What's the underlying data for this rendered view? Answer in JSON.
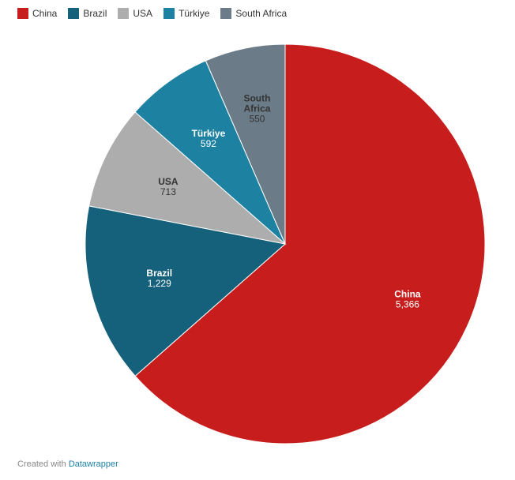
{
  "chart_data": {
    "type": "pie",
    "title": "",
    "categories": [
      "China",
      "Brazil",
      "USA",
      "Türkiye",
      "South Africa"
    ],
    "values": [
      5366,
      1229,
      713,
      592,
      550
    ],
    "value_labels": [
      "5,366",
      "1,229",
      "713",
      "592",
      "550"
    ],
    "colors": [
      "#c71e1d",
      "#15607a",
      "#adadad",
      "#1d81a2",
      "#6b7c88"
    ],
    "label_text_colors": [
      "#ffffff",
      "#ffffff",
      "#333333",
      "#ffffff",
      "#333333"
    ],
    "label_lines": [
      [
        "China"
      ],
      [
        "Brazil"
      ],
      [
        "USA"
      ],
      [
        "Türkiye"
      ],
      [
        "South",
        "Africa"
      ]
    ],
    "start": "top",
    "direction": "clockwise",
    "legend_position": "top-left"
  },
  "footer": {
    "prefix": "Created with ",
    "link": "Datawrapper"
  }
}
